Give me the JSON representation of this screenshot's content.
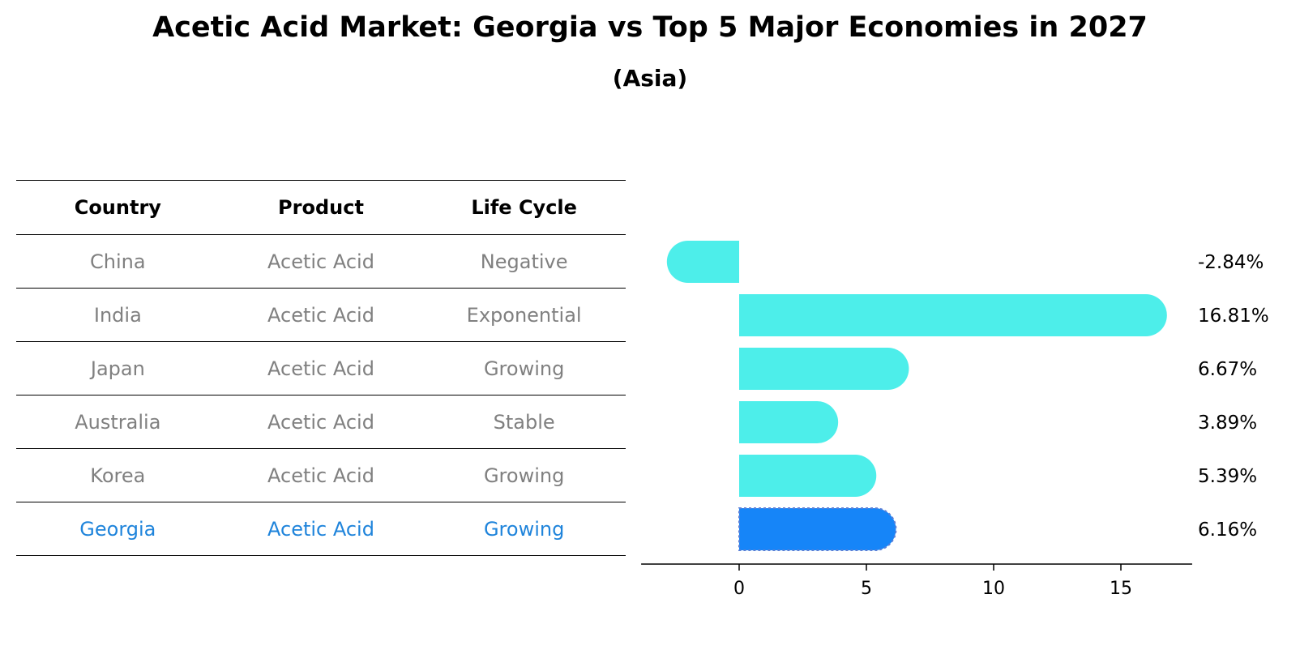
{
  "title": "Acetic Acid Market: Georgia vs Top 5 Major Economies in 2027",
  "subtitle": "(Asia)",
  "table": {
    "headers": [
      "Country",
      "Product",
      "Life Cycle"
    ],
    "rows": [
      {
        "country": "China",
        "product": "Acetic Acid",
        "life_cycle": "Negative"
      },
      {
        "country": "India",
        "product": "Acetic Acid",
        "life_cycle": "Exponential"
      },
      {
        "country": "Japan",
        "product": "Acetic Acid",
        "life_cycle": "Growing"
      },
      {
        "country": "Australia",
        "product": "Acetic Acid",
        "life_cycle": "Stable"
      },
      {
        "country": "Korea",
        "product": "Acetic Acid",
        "life_cycle": "Growing"
      },
      {
        "country": "Georgia",
        "product": "Acetic Acid",
        "life_cycle": "Growing",
        "highlight": true
      }
    ]
  },
  "chart_data": {
    "type": "bar",
    "orientation": "horizontal",
    "categories": [
      "China",
      "India",
      "Japan",
      "Australia",
      "Korea",
      "Georgia"
    ],
    "values": [
      -2.84,
      16.81,
      6.67,
      3.89,
      5.39,
      6.16
    ],
    "value_labels": [
      "-2.84%",
      "16.81%",
      "6.67%",
      "3.89%",
      "5.39%",
      "6.16%"
    ],
    "highlight_category": "Georgia",
    "xlim": [
      -3.85,
      17.8
    ],
    "xticks": [
      0,
      5,
      10,
      15
    ],
    "xlabel": "",
    "ylabel": "",
    "grid": false,
    "colors": {
      "default": "#4deeea",
      "highlight": "#1685f8",
      "highlight_border": "#5a7fd6"
    }
  }
}
